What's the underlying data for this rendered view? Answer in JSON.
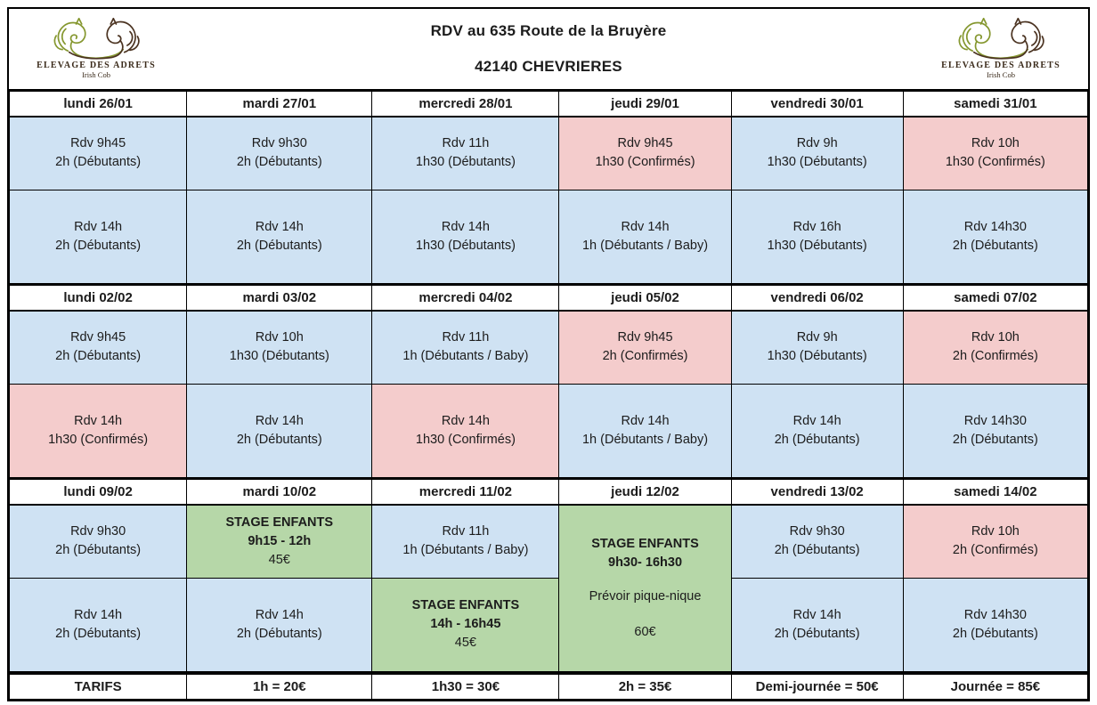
{
  "header": {
    "address_line1": "RDV au 635 Route de la Bruyère",
    "address_line2": "42140 CHEVRIERES"
  },
  "logo": {
    "name": "ELEVAGE DES ADRETS",
    "subtitle": "Irish Cob",
    "green": "#85972f",
    "brown": "#4b3321"
  },
  "legend_colors": {
    "debutants": "#cfe2f3",
    "confirmes": "#f4cccc",
    "stage": "#b6d7a8"
  },
  "weeks": [
    {
      "days": [
        {
          "label": "lundi 26/01",
          "morning": {
            "style": "debutants",
            "lines": [
              "Rdv 9h45",
              "2h (Débutants)"
            ]
          },
          "afternoon": {
            "style": "debutants",
            "lines": [
              "Rdv 14h",
              "2h (Débutants)"
            ]
          }
        },
        {
          "label": "mardi 27/01",
          "morning": {
            "style": "debutants",
            "lines": [
              "Rdv 9h30",
              "2h (Débutants)"
            ]
          },
          "afternoon": {
            "style": "debutants",
            "lines": [
              "Rdv 14h",
              "2h (Débutants)"
            ]
          }
        },
        {
          "label": "mercredi 28/01",
          "morning": {
            "style": "debutants",
            "lines": [
              "Rdv 11h",
              "1h30 (Débutants)"
            ]
          },
          "afternoon": {
            "style": "debutants",
            "lines": [
              "Rdv 14h",
              "1h30 (Débutants)"
            ]
          }
        },
        {
          "label": "jeudi 29/01",
          "morning": {
            "style": "confirmes",
            "lines": [
              "Rdv 9h45",
              "1h30 (Confirmés)"
            ]
          },
          "afternoon": {
            "style": "debutants",
            "lines": [
              "Rdv 14h",
              "1h (Débutants / Baby)"
            ]
          }
        },
        {
          "label": "vendredi 30/01",
          "morning": {
            "style": "debutants",
            "lines": [
              "Rdv 9h",
              "1h30 (Débutants)"
            ]
          },
          "afternoon": {
            "style": "debutants",
            "lines": [
              "Rdv 16h",
              "1h30 (Débutants)"
            ]
          }
        },
        {
          "label": "samedi 31/01",
          "morning": {
            "style": "confirmes",
            "lines": [
              "Rdv 10h",
              "1h30 (Confirmés)"
            ]
          },
          "afternoon": {
            "style": "debutants",
            "lines": [
              "Rdv 14h30",
              "2h (Débutants)"
            ]
          }
        }
      ]
    },
    {
      "days": [
        {
          "label": "lundi 02/02",
          "morning": {
            "style": "debutants",
            "lines": [
              "Rdv 9h45",
              "2h (Débutants)"
            ]
          },
          "afternoon": {
            "style": "confirmes",
            "lines": [
              "Rdv 14h",
              "1h30 (Confirmés)"
            ]
          }
        },
        {
          "label": "mardi 03/02",
          "morning": {
            "style": "debutants",
            "lines": [
              "Rdv 10h",
              "1h30 (Débutants)"
            ]
          },
          "afternoon": {
            "style": "debutants",
            "lines": [
              "Rdv 14h",
              "2h (Débutants)"
            ]
          }
        },
        {
          "label": "mercredi 04/02",
          "morning": {
            "style": "debutants",
            "lines": [
              "Rdv 11h",
              "1h (Débutants / Baby)"
            ]
          },
          "afternoon": {
            "style": "confirmes",
            "lines": [
              "Rdv 14h",
              "1h30 (Confirmés)"
            ]
          }
        },
        {
          "label": "jeudi 05/02",
          "morning": {
            "style": "confirmes",
            "lines": [
              "Rdv 9h45",
              "2h (Confirmés)"
            ]
          },
          "afternoon": {
            "style": "debutants",
            "lines": [
              "Rdv 14h",
              "1h (Débutants / Baby)"
            ]
          }
        },
        {
          "label": "vendredi 06/02",
          "morning": {
            "style": "debutants",
            "lines": [
              "Rdv 9h",
              "1h30 (Débutants)"
            ]
          },
          "afternoon": {
            "style": "debutants",
            "lines": [
              "Rdv 14h",
              "2h (Débutants)"
            ]
          }
        },
        {
          "label": "samedi 07/02",
          "morning": {
            "style": "confirmes",
            "lines": [
              "Rdv 10h",
              "2h (Confirmés)"
            ]
          },
          "afternoon": {
            "style": "debutants",
            "lines": [
              "Rdv 14h30",
              "2h (Débutants)"
            ]
          }
        }
      ]
    },
    {
      "days": [
        {
          "label": "lundi 09/02",
          "morning": {
            "style": "debutants",
            "lines": [
              "Rdv 9h30",
              "2h (Débutants)"
            ]
          },
          "afternoon": {
            "style": "debutants",
            "lines": [
              "Rdv 14h",
              "2h (Débutants)"
            ]
          }
        },
        {
          "label": "mardi 10/02",
          "morning": {
            "style": "stage",
            "bold_count": 2,
            "lines": [
              "STAGE ENFANTS",
              "9h15 - 12h",
              "45€"
            ]
          },
          "afternoon": {
            "style": "debutants",
            "lines": [
              "Rdv 14h",
              "2h (Débutants)"
            ]
          }
        },
        {
          "label": "mercredi 11/02",
          "morning": {
            "style": "debutants",
            "lines": [
              "Rdv 11h",
              "1h (Débutants / Baby)"
            ]
          },
          "afternoon": {
            "style": "stage",
            "bold_count": 2,
            "lines": [
              "STAGE ENFANTS",
              "14h - 16h45",
              "45€"
            ]
          }
        },
        {
          "label": "jeudi 12/02",
          "full_day": {
            "style": "stage",
            "bold_count": 2,
            "lines": [
              "STAGE ENFANTS",
              "9h30- 16h30",
              "Prévoir pique-nique",
              "60€"
            ]
          }
        },
        {
          "label": "vendredi 13/02",
          "morning": {
            "style": "debutants",
            "lines": [
              "Rdv 9h30",
              "2h (Débutants)"
            ]
          },
          "afternoon": {
            "style": "debutants",
            "lines": [
              "Rdv 14h",
              "2h (Débutants)"
            ]
          }
        },
        {
          "label": "samedi 14/02",
          "morning": {
            "style": "confirmes",
            "lines": [
              "Rdv 10h",
              "2h (Confirmés)"
            ]
          },
          "afternoon": {
            "style": "debutants",
            "lines": [
              "Rdv 14h30",
              "2h (Débutants)"
            ]
          }
        }
      ]
    }
  ],
  "tarifs": {
    "label": "TARIFS",
    "items": [
      "1h = 20€",
      "1h30 = 30€",
      "2h = 35€",
      "Demi-journée = 50€",
      "Journée = 85€"
    ]
  }
}
